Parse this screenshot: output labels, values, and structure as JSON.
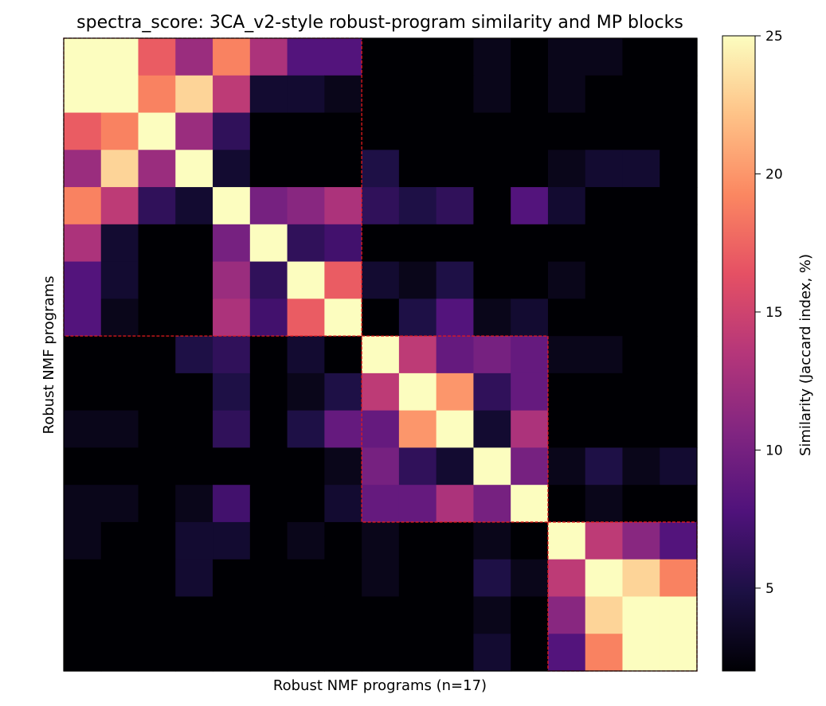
{
  "chart_data": {
    "type": "heatmap",
    "title": "spectra_score: 3CA_v2-style robust-program similarity and MP blocks",
    "xlabel": "Robust NMF programs (n=17)",
    "ylabel": "Robust NMF programs",
    "colorbar": {
      "label": "Similarity (Jaccard index, %)",
      "min": 2,
      "max": 25,
      "ticks": [
        5,
        10,
        15,
        20,
        25
      ],
      "colormap": "magma"
    },
    "n": 17,
    "matrix": [
      [
        25,
        25,
        17,
        12,
        19,
        13,
        8,
        8,
        2,
        2,
        2,
        3,
        2,
        3,
        3,
        2,
        2
      ],
      [
        25,
        25,
        19,
        23,
        14,
        4,
        4,
        3,
        2,
        2,
        2,
        3,
        2,
        3,
        2,
        2,
        2
      ],
      [
        17,
        19,
        25,
        12,
        6,
        2,
        2,
        2,
        2,
        2,
        2,
        2,
        2,
        2,
        2,
        2,
        2
      ],
      [
        12,
        23,
        12,
        25,
        4,
        2,
        2,
        2,
        5,
        2,
        2,
        2,
        2,
        3,
        4,
        4,
        2
      ],
      [
        19,
        14,
        6,
        4,
        25,
        10,
        11,
        13,
        6,
        5,
        6,
        2,
        8,
        4,
        2,
        2,
        2
      ],
      [
        13,
        4,
        2,
        2,
        10,
        25,
        6,
        7,
        2,
        2,
        2,
        2,
        2,
        2,
        2,
        2,
        2
      ],
      [
        8,
        4,
        2,
        2,
        12,
        6,
        25,
        17,
        4,
        3,
        5,
        2,
        2,
        3,
        2,
        2,
        2
      ],
      [
        8,
        3,
        2,
        2,
        13,
        7,
        17,
        25,
        2,
        5,
        8,
        3,
        4,
        2,
        2,
        2,
        2
      ],
      [
        2,
        2,
        2,
        5,
        6,
        2,
        4,
        2,
        25,
        14,
        9,
        10,
        9,
        3,
        3,
        2,
        2
      ],
      [
        2,
        2,
        2,
        2,
        5,
        2,
        3,
        5,
        14,
        25,
        20,
        6,
        9,
        2,
        2,
        2,
        2
      ],
      [
        3,
        3,
        2,
        2,
        6,
        2,
        5,
        9,
        9,
        20,
        25,
        4,
        13,
        2,
        2,
        2,
        2
      ],
      [
        2,
        2,
        2,
        2,
        2,
        2,
        2,
        3,
        10,
        6,
        4,
        25,
        10,
        3,
        5,
        3,
        4
      ],
      [
        3,
        3,
        2,
        3,
        7,
        2,
        2,
        4,
        9,
        9,
        13,
        10,
        25,
        2,
        3,
        2,
        2
      ],
      [
        3,
        2,
        2,
        4,
        4,
        2,
        3,
        2,
        3,
        2,
        2,
        3,
        2,
        25,
        14,
        11,
        8
      ],
      [
        2,
        2,
        2,
        4,
        2,
        2,
        2,
        2,
        3,
        2,
        2,
        5,
        3,
        14,
        25,
        23,
        19
      ],
      [
        2,
        2,
        2,
        2,
        2,
        2,
        2,
        2,
        2,
        2,
        2,
        3,
        2,
        11,
        23,
        25,
        25
      ],
      [
        2,
        2,
        2,
        2,
        2,
        2,
        2,
        2,
        2,
        2,
        2,
        4,
        2,
        8,
        19,
        25,
        25
      ]
    ],
    "blocks": [
      {
        "start": 0,
        "end": 7
      },
      {
        "start": 8,
        "end": 12
      },
      {
        "start": 13,
        "end": 16
      }
    ],
    "block_outline_color": "#e41a1c"
  }
}
